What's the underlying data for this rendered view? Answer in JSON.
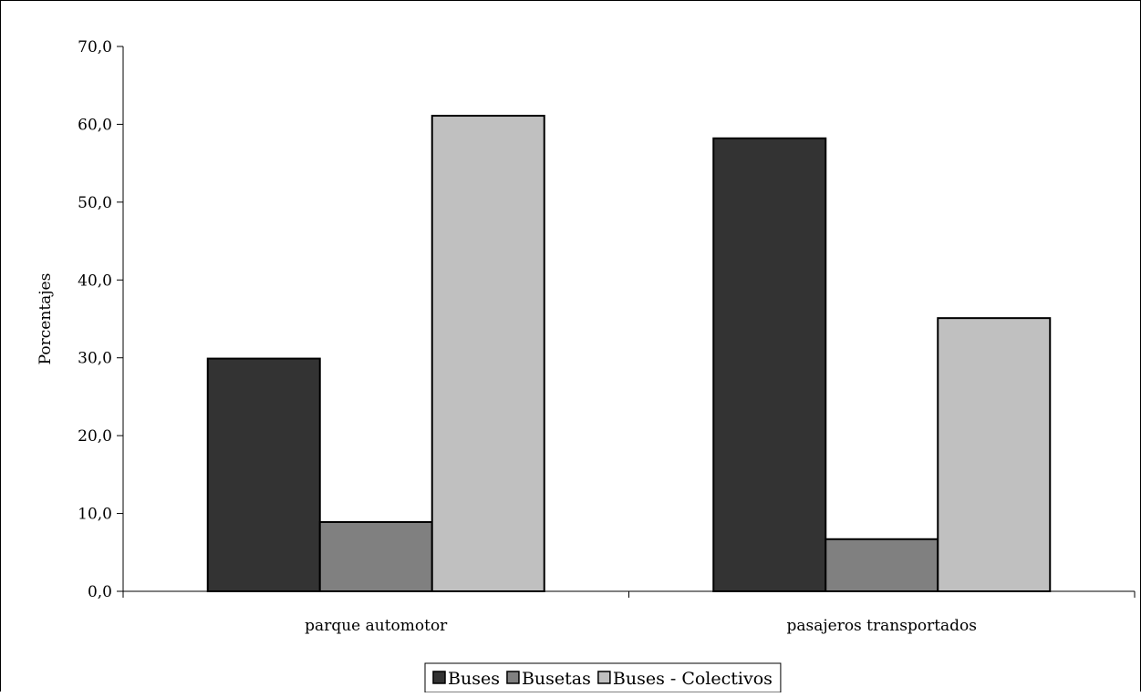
{
  "chart_data": {
    "type": "bar",
    "title": "",
    "xlabel": "",
    "ylabel": "Porcentajes",
    "ylim": [
      0,
      70
    ],
    "yticks": [
      "0,0",
      "10,0",
      "20,0",
      "30,0",
      "40,0",
      "50,0",
      "60,0",
      "70,0"
    ],
    "categories": [
      "parque automotor",
      "pasajeros transportados"
    ],
    "series": [
      {
        "name": "Buses",
        "color": "#333333",
        "values": [
          29.9,
          58.2
        ]
      },
      {
        "name": "Busetas",
        "color": "#808080",
        "values": [
          8.9,
          6.7
        ]
      },
      {
        "name": "Buses - Colectivos",
        "color": "#c0c0c0",
        "values": [
          61.1,
          35.1
        ]
      }
    ],
    "grid": false,
    "legend": "bottom"
  }
}
